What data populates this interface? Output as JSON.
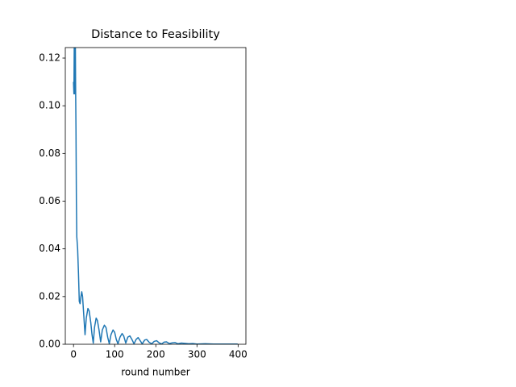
{
  "chart_data": {
    "type": "line",
    "title": "Distance to Feasibility",
    "x_label": "round number",
    "xlim": [
      -19.95,
      418.95
    ],
    "ylim": [
      0,
      0.1244
    ],
    "xticks": [
      0,
      100,
      200,
      300,
      400
    ],
    "yticks": [
      {
        "value": 0,
        "label": "0.00"
      },
      {
        "value": 0.02,
        "label": "0.02"
      },
      {
        "value": 0.04,
        "label": "0.04"
      },
      {
        "value": 0.06,
        "label": "0.06"
      },
      {
        "value": 0.08,
        "label": "0.08"
      },
      {
        "value": 0.1,
        "label": "0.10"
      },
      {
        "value": 0.12,
        "label": "0.12"
      }
    ],
    "series": [
      {
        "color": "#1f77b4",
        "x": [
          0,
          1,
          2,
          3,
          4,
          5,
          6,
          7,
          8,
          10,
          12,
          14,
          16,
          18,
          20,
          22,
          25,
          28,
          31,
          35,
          38,
          42,
          45,
          48,
          51,
          55,
          58,
          62,
          66,
          70,
          75,
          79,
          83,
          87,
          91,
          96,
          100,
          104,
          108,
          113,
          118,
          122,
          127,
          132,
          137,
          142,
          147,
          152,
          157,
          162,
          167,
          173,
          178,
          184,
          190,
          196,
          202,
          208,
          214,
          220,
          226,
          233,
          240,
          247,
          254,
          262,
          270,
          280,
          290,
          300,
          320,
          340,
          360,
          380,
          399
        ],
        "values": [
          0.11,
          0.105,
          0.13,
          0.105,
          0.14,
          0.11,
          0.09,
          0.06,
          0.045,
          0.04,
          0.03,
          0.018,
          0.017,
          0.02,
          0.022,
          0.02,
          0.012,
          0.004,
          0.011,
          0.015,
          0.014,
          0.009,
          0.004,
          0.0005,
          0.007,
          0.011,
          0.01,
          0.006,
          0.001,
          0.006,
          0.008,
          0.007,
          0.003,
          0.0002,
          0.004,
          0.006,
          0.005,
          0.002,
          0.0002,
          0.003,
          0.0045,
          0.0035,
          0.0005,
          0.003,
          0.0035,
          0.002,
          0.0002,
          0.002,
          0.0028,
          0.0015,
          0.0002,
          0.0018,
          0.002,
          0.0008,
          0.0002,
          0.0012,
          0.0015,
          0.0006,
          0.0001,
          0.0009,
          0.001,
          0.0003,
          0.0006,
          0.0007,
          0.0002,
          0.0005,
          0.0004,
          0.0002,
          0.0003,
          0.0001,
          0.0002,
          0.0001,
          0.0001,
          0.0001,
          0.0001
        ]
      }
    ]
  }
}
